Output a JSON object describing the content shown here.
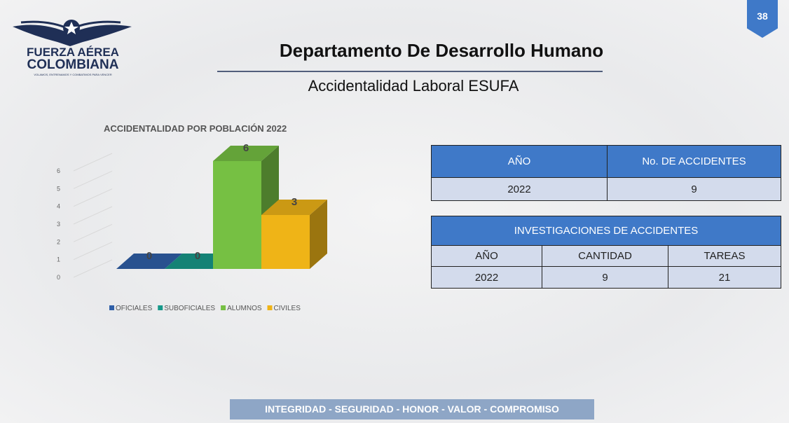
{
  "logo": {
    "line1": "FUERZA AÉREA",
    "line2": "COLOMBIANA",
    "motto": "VOLAMOS, ENTRENAMOS Y COMBATIMOS PARA VENCER"
  },
  "page_number": "38",
  "header": {
    "title": "Departamento De Desarrollo Humano",
    "subtitle": "Accidentalidad Laboral ESUFA"
  },
  "chart_data": {
    "type": "bar3d",
    "title": "ACCIDENTALIDAD POR POBLACIÓN 2022",
    "categories": [
      "OFICIALES",
      "SUBOFICIALES",
      "ALUMNOS",
      "CIVILES"
    ],
    "values": [
      0,
      0,
      6,
      3
    ],
    "colors": [
      "#2f5fa8",
      "#17998a",
      "#76c043",
      "#efb417"
    ],
    "ylim": [
      0,
      6
    ],
    "yticks": [
      0,
      1,
      2,
      3,
      4,
      5,
      6
    ],
    "grid": true,
    "legend": "bottom"
  },
  "table1": {
    "header": [
      "AÑO",
      "No. DE ACCIDENTES"
    ],
    "rows": [
      [
        "2022",
        "9"
      ]
    ]
  },
  "table2": {
    "title": "INVESTIGACIONES DE ACCIDENTES",
    "header": [
      "AÑO",
      "CANTIDAD",
      "TAREAS"
    ],
    "rows": [
      [
        "2022",
        "9",
        "21"
      ]
    ]
  },
  "footer": "INTEGRIDAD - SEGURIDAD - HONOR - VALOR - COMPROMISO"
}
